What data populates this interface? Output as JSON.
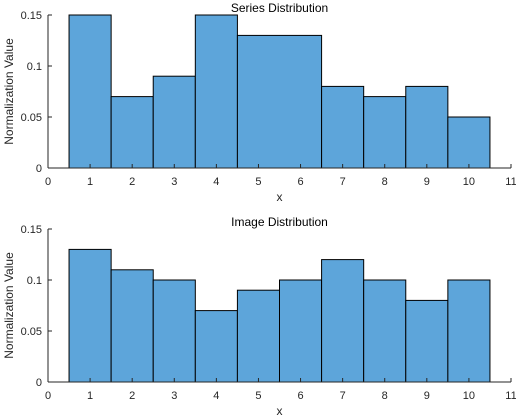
{
  "chart_data": [
    {
      "type": "bar",
      "title": "Series Distribution",
      "xlabel": "x",
      "ylabel": "Normalization Value",
      "xlim": [
        0,
        11
      ],
      "ylim": [
        0,
        0.15
      ],
      "x_ticks": [
        "0",
        "1",
        "2",
        "3",
        "4",
        "5",
        "6",
        "7",
        "8",
        "9",
        "10",
        "11"
      ],
      "y_ticks": [
        "0",
        "0.05",
        "0.1",
        "0.15"
      ],
      "categories": [
        "1",
        "2",
        "3",
        "4",
        "5",
        "6",
        "7",
        "8",
        "9",
        "10"
      ],
      "bins": [
        {
          "left": 0.5,
          "right": 1.5,
          "value": 0.15
        },
        {
          "left": 1.5,
          "right": 2.5,
          "value": 0.07
        },
        {
          "left": 2.5,
          "right": 3.5,
          "value": 0.09
        },
        {
          "left": 3.5,
          "right": 4.5,
          "value": 0.15
        },
        {
          "left": 4.5,
          "right": 6.5,
          "value": 0.13
        },
        {
          "left": 6.5,
          "right": 7.5,
          "value": 0.08
        },
        {
          "left": 7.5,
          "right": 8.5,
          "value": 0.07
        },
        {
          "left": 8.5,
          "right": 9.5,
          "value": 0.08
        },
        {
          "left": 9.5,
          "right": 10.5,
          "value": 0.05
        }
      ],
      "bar_color": "#5DA5DA",
      "edge_color": "#000000"
    },
    {
      "type": "bar",
      "title": "Image Distribution",
      "xlabel": "x",
      "ylabel": "Normalization Value",
      "xlim": [
        0,
        11
      ],
      "ylim": [
        0,
        0.15
      ],
      "x_ticks": [
        "0",
        "1",
        "2",
        "3",
        "4",
        "5",
        "6",
        "7",
        "8",
        "9",
        "10",
        "11"
      ],
      "y_ticks": [
        "0",
        "0.05",
        "0.1",
        "0.15"
      ],
      "categories": [
        "1",
        "2",
        "3",
        "4",
        "5",
        "6",
        "7",
        "8",
        "9",
        "10"
      ],
      "bins": [
        {
          "left": 0.5,
          "right": 1.5,
          "value": 0.13
        },
        {
          "left": 1.5,
          "right": 2.5,
          "value": 0.11
        },
        {
          "left": 2.5,
          "right": 3.5,
          "value": 0.1
        },
        {
          "left": 3.5,
          "right": 4.5,
          "value": 0.07
        },
        {
          "left": 4.5,
          "right": 5.5,
          "value": 0.09
        },
        {
          "left": 5.5,
          "right": 6.5,
          "value": 0.1
        },
        {
          "left": 6.5,
          "right": 7.5,
          "value": 0.12
        },
        {
          "left": 7.5,
          "right": 8.5,
          "value": 0.1
        },
        {
          "left": 8.5,
          "right": 9.5,
          "value": 0.08
        },
        {
          "left": 9.5,
          "right": 10.5,
          "value": 0.1
        }
      ],
      "bar_color": "#5DA5DA",
      "edge_color": "#000000"
    }
  ]
}
